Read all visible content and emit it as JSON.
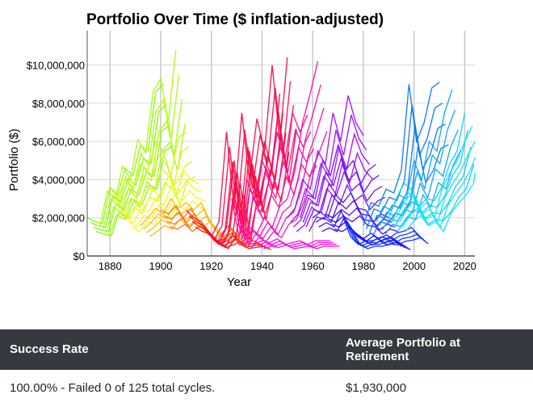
{
  "chart_data": {
    "type": "line",
    "title": "Portfolio Over Time ($ inflation-adjusted)",
    "xlabel": "Year",
    "ylabel": "Portfolio ($)",
    "xlim": [
      1871,
      2024
    ],
    "ylim": [
      0,
      11800000
    ],
    "xticks": [
      1880,
      1900,
      1920,
      1940,
      1960,
      1980,
      2000,
      2020
    ],
    "xtick_labels": [
      "1880",
      "1900",
      "1920",
      "1940",
      "1960",
      "1980",
      "2000",
      "2020"
    ],
    "yticks": [
      0,
      2000000,
      4000000,
      6000000,
      8000000,
      10000000
    ],
    "ytick_labels": [
      "$0",
      "$2,000,000",
      "$4,000,000",
      "$6,000,000",
      "$8,000,000",
      "$10,000,000"
    ],
    "grid": true,
    "legend": "none",
    "color_scheme": "rainbow hue by cycle start year (green to red to purple to blue to cyan)",
    "year_step": 3,
    "series_unit": "millions of dollars",
    "series": [
      {
        "start": 1871,
        "values": [
          2.0,
          1.8,
          1.7,
          3.6,
          3.2,
          4.6,
          4.2,
          5.8,
          5.5,
          8.6,
          9.0
        ]
      },
      {
        "start": 1876,
        "values": [
          1.6,
          3.4,
          3.0,
          4.7,
          4.0,
          6.1,
          5.4,
          8.6,
          9.3,
          7.0,
          10.8
        ]
      },
      {
        "start": 1880,
        "values": [
          3.6,
          3.0,
          4.0,
          3.5,
          4.8,
          4.5,
          6.0,
          5.5,
          4.2,
          6.2,
          6.5
        ]
      },
      {
        "start": 1885,
        "values": [
          2.4,
          2.0,
          2.8,
          2.6,
          3.5,
          3.0,
          4.2,
          3.8,
          4.5,
          4.0,
          3.8
        ]
      },
      {
        "start": 1892,
        "values": [
          1.6,
          2.0,
          2.5,
          2.2,
          3.0,
          2.5,
          2.8,
          2.4,
          2.8,
          1.8,
          1.5
        ]
      },
      {
        "start": 1900,
        "values": [
          2.4,
          2.2,
          2.6,
          2.0,
          2.5,
          1.8,
          1.4,
          0.8,
          1.2,
          1.6,
          1.0
        ]
      },
      {
        "start": 1910,
        "values": [
          2.4,
          2.0,
          1.8,
          1.2,
          0.7,
          0.9,
          1.2,
          0.6,
          0.7,
          0.8,
          0.5
        ]
      },
      {
        "start": 1917,
        "values": [
          1.5,
          1.0,
          0.6,
          1.5,
          5.0,
          1.2,
          5.5,
          3.0,
          6.0,
          4.5,
          8.5
        ]
      },
      {
        "start": 1920,
        "values": [
          1.0,
          1.8,
          6.5,
          2.5,
          7.5,
          4.0,
          7.2,
          5.5,
          10.0,
          6.0,
          10.4
        ]
      },
      {
        "start": 1928,
        "values": [
          3.0,
          1.0,
          4.0,
          3.0,
          5.0,
          4.0,
          6.5,
          5.0,
          7.5,
          6.5,
          7.4
        ]
      },
      {
        "start": 1932,
        "values": [
          0.6,
          1.5,
          1.2,
          2.0,
          1.5,
          2.6,
          3.0,
          4.5,
          7.0,
          8.5,
          10.2
        ]
      },
      {
        "start": 1937,
        "values": [
          0.6,
          0.8,
          0.7,
          0.9,
          0.6,
          0.7,
          0.8,
          0.6,
          0.8,
          0.8,
          0.8
        ]
      },
      {
        "start": 1950,
        "values": [
          2.0,
          2.5,
          4.0,
          3.5,
          5.5,
          4.8,
          7.5,
          6.0,
          8.4,
          7.0,
          6.3
        ]
      },
      {
        "start": 1955,
        "values": [
          2.0,
          3.2,
          3.0,
          5.0,
          4.2,
          5.8,
          4.5,
          5.0,
          3.8,
          4.5,
          4.8
        ]
      },
      {
        "start": 1960,
        "values": [
          2.0,
          2.3,
          2.0,
          3.2,
          2.8,
          3.3,
          2.5,
          2.4,
          1.8,
          2.2,
          2.0
        ]
      },
      {
        "start": 1965,
        "values": [
          2.2,
          2.0,
          2.4,
          1.6,
          1.2,
          0.9,
          1.2,
          0.9,
          1.1,
          0.9,
          0.5
        ]
      },
      {
        "start": 1972,
        "values": [
          2.0,
          1.0,
          0.6,
          0.8,
          0.8,
          1.0,
          0.9,
          1.2,
          1.3,
          1.5,
          1.0
        ]
      },
      {
        "start": 1980,
        "values": [
          1.6,
          2.8,
          2.6,
          3.5,
          3.3,
          4.5,
          9.0,
          6.0,
          7.0,
          8.8,
          9.1
        ]
      },
      {
        "start": 1985,
        "values": [
          1.8,
          2.6,
          2.4,
          3.2,
          3.0,
          5.0,
          4.0,
          6.0,
          5.5,
          7.5,
          8.7
        ]
      },
      {
        "start": 1990,
        "values": [
          2.0,
          3.0,
          3.8,
          3.5,
          2.6,
          3.0,
          2.9,
          3.6,
          4.8,
          5.5,
          7.5
        ]
      },
      {
        "start": 1993,
        "values": [
          2.0,
          2.8,
          3.3,
          2.5,
          2.8,
          2.0,
          3.5,
          4.3,
          5.0,
          6.0,
          6.8
        ]
      }
    ]
  },
  "results_table": {
    "headers": [
      "Success Rate",
      "Average Portfolio at Retirement"
    ],
    "row": [
      "100.00% - Failed 0 of 125 total cycles.",
      "$1,930,000"
    ]
  },
  "colors": {
    "table_header_bg": "#343a40",
    "grid": "#d9d9d9",
    "axis": "#555555"
  }
}
